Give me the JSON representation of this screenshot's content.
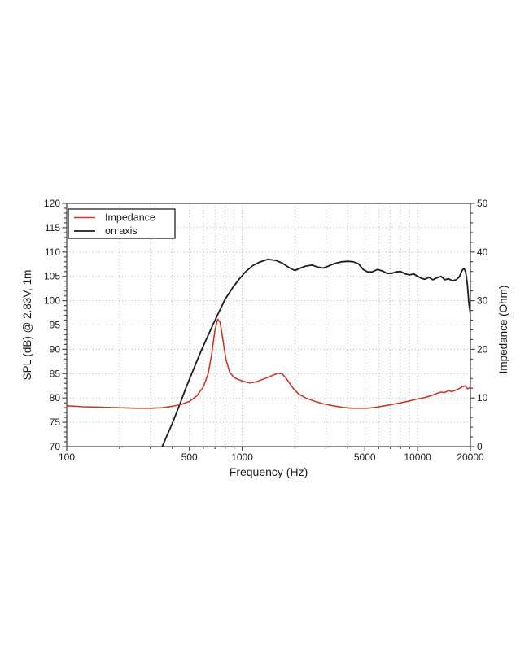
{
  "chart_data": {
    "type": "line",
    "title": "",
    "xlabel": "Frequency (Hz)",
    "ylabel_left": "SPL (dB) @ 2.83V, 1m",
    "ylabel_right": "Impedance (Ohm)",
    "x_scale": "log",
    "xlim": [
      100,
      20000
    ],
    "ylim_left": [
      70,
      120
    ],
    "ylim_right": [
      0,
      50
    ],
    "x_ticks_labeled": [
      100,
      500,
      1000,
      5000,
      10000,
      20000
    ],
    "y_ticks_left": [
      70,
      75,
      80,
      85,
      90,
      95,
      100,
      105,
      110,
      115,
      120
    ],
    "y_ticks_right": [
      0,
      10,
      20,
      30,
      40,
      50
    ],
    "grid": "dotted",
    "grid_color": "#b5b5b5",
    "frame_color": "#4a4a4a",
    "text_color": "#1a1a1a",
    "legend_position": "upper left",
    "legend": [
      {
        "label": "Impedance"
      },
      {
        "label": "on axis"
      }
    ],
    "series": [
      {
        "name": "Impedance",
        "axis": "right",
        "unit": "Ohm",
        "color": "#c63a2e",
        "points": [
          [
            100,
            8.4
          ],
          [
            125,
            8.2
          ],
          [
            160,
            8.1
          ],
          [
            200,
            8.0
          ],
          [
            250,
            7.9
          ],
          [
            300,
            7.9
          ],
          [
            350,
            8.0
          ],
          [
            400,
            8.3
          ],
          [
            450,
            8.7
          ],
          [
            500,
            9.3
          ],
          [
            550,
            10.4
          ],
          [
            600,
            12.2
          ],
          [
            640,
            15.0
          ],
          [
            670,
            19.0
          ],
          [
            700,
            24.0
          ],
          [
            725,
            26.2
          ],
          [
            750,
            25.5
          ],
          [
            780,
            21.5
          ],
          [
            810,
            17.8
          ],
          [
            850,
            15.3
          ],
          [
            900,
            14.2
          ],
          [
            950,
            13.8
          ],
          [
            1000,
            13.5
          ],
          [
            1100,
            13.1
          ],
          [
            1200,
            13.3
          ],
          [
            1350,
            14.0
          ],
          [
            1500,
            14.7
          ],
          [
            1600,
            15.1
          ],
          [
            1700,
            14.9
          ],
          [
            1800,
            13.8
          ],
          [
            1950,
            12.0
          ],
          [
            2100,
            10.8
          ],
          [
            2300,
            10.0
          ],
          [
            2600,
            9.3
          ],
          [
            2900,
            8.8
          ],
          [
            3300,
            8.4
          ],
          [
            3700,
            8.1
          ],
          [
            4200,
            7.9
          ],
          [
            4700,
            7.9
          ],
          [
            5200,
            7.9
          ],
          [
            5800,
            8.1
          ],
          [
            6500,
            8.4
          ],
          [
            7200,
            8.7
          ],
          [
            8000,
            9.0
          ],
          [
            9000,
            9.4
          ],
          [
            10000,
            9.8
          ],
          [
            11000,
            10.1
          ],
          [
            12000,
            10.5
          ],
          [
            13000,
            11.0
          ],
          [
            13600,
            11.2
          ],
          [
            14200,
            11.1
          ],
          [
            15000,
            11.5
          ],
          [
            15700,
            11.3
          ],
          [
            16500,
            11.6
          ],
          [
            17200,
            11.9
          ],
          [
            18000,
            12.3
          ],
          [
            18700,
            12.5
          ],
          [
            19200,
            11.9
          ],
          [
            19600,
            12.0
          ],
          [
            20000,
            12.2
          ]
        ]
      },
      {
        "name": "on axis",
        "axis": "left",
        "unit": "dB SPL",
        "color": "#1d1d1d",
        "points": [
          [
            340,
            69.0
          ],
          [
            370,
            72.0
          ],
          [
            400,
            74.8
          ],
          [
            440,
            78.6
          ],
          [
            480,
            82.2
          ],
          [
            520,
            85.3
          ],
          [
            570,
            88.8
          ],
          [
            620,
            91.8
          ],
          [
            680,
            95.0
          ],
          [
            740,
            97.8
          ],
          [
            800,
            100.3
          ],
          [
            880,
            102.6
          ],
          [
            960,
            104.4
          ],
          [
            1050,
            106.0
          ],
          [
            1150,
            107.2
          ],
          [
            1250,
            107.9
          ],
          [
            1400,
            108.5
          ],
          [
            1550,
            108.3
          ],
          [
            1700,
            107.7
          ],
          [
            1850,
            106.8
          ],
          [
            2000,
            106.2
          ],
          [
            2150,
            106.7
          ],
          [
            2300,
            107.1
          ],
          [
            2500,
            107.3
          ],
          [
            2700,
            106.9
          ],
          [
            2900,
            106.7
          ],
          [
            3100,
            107.1
          ],
          [
            3400,
            107.7
          ],
          [
            3700,
            108.0
          ],
          [
            4000,
            108.1
          ],
          [
            4300,
            108.0
          ],
          [
            4600,
            107.6
          ],
          [
            4900,
            106.4
          ],
          [
            5200,
            105.9
          ],
          [
            5500,
            105.9
          ],
          [
            5900,
            106.4
          ],
          [
            6300,
            106.1
          ],
          [
            6700,
            105.6
          ],
          [
            7100,
            105.6
          ],
          [
            7500,
            105.9
          ],
          [
            8000,
            106.0
          ],
          [
            8500,
            105.5
          ],
          [
            9000,
            105.3
          ],
          [
            9500,
            105.5
          ],
          [
            10000,
            105.0
          ],
          [
            10500,
            104.6
          ],
          [
            11000,
            104.4
          ],
          [
            11600,
            104.8
          ],
          [
            12200,
            104.3
          ],
          [
            12900,
            104.7
          ],
          [
            13600,
            105.0
          ],
          [
            14300,
            104.3
          ],
          [
            15000,
            104.5
          ],
          [
            15800,
            104.1
          ],
          [
            16600,
            104.3
          ],
          [
            17300,
            104.9
          ],
          [
            18000,
            106.3
          ],
          [
            18400,
            106.6
          ],
          [
            18800,
            105.9
          ],
          [
            19200,
            103.5
          ],
          [
            19600,
            99.5
          ],
          [
            20000,
            97.2
          ]
        ]
      }
    ]
  }
}
